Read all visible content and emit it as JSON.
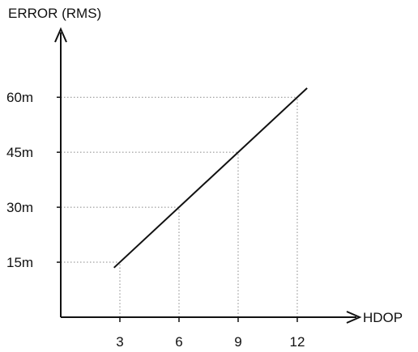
{
  "chart_data": {
    "type": "line",
    "ylabel": "ERROR (RMS)",
    "xlabel": "HDOP",
    "x_ticks": [
      3,
      6,
      9,
      12
    ],
    "x_tick_labels": [
      "3",
      "6",
      "9",
      "12"
    ],
    "y_ticks": [
      15,
      30,
      45,
      60
    ],
    "y_tick_labels": [
      "15m",
      "30m",
      "45m",
      "60m"
    ],
    "xlim": [
      0,
      15.5
    ],
    "ylim": [
      0,
      66
    ],
    "grid": "dotted guide lines at tick values",
    "series": [
      {
        "x": [
          2.7,
          12.5
        ],
        "y": [
          13.5,
          62.5
        ]
      }
    ],
    "colors": {
      "line": "#111111",
      "axis": "#111111",
      "guide": "#888888"
    }
  }
}
